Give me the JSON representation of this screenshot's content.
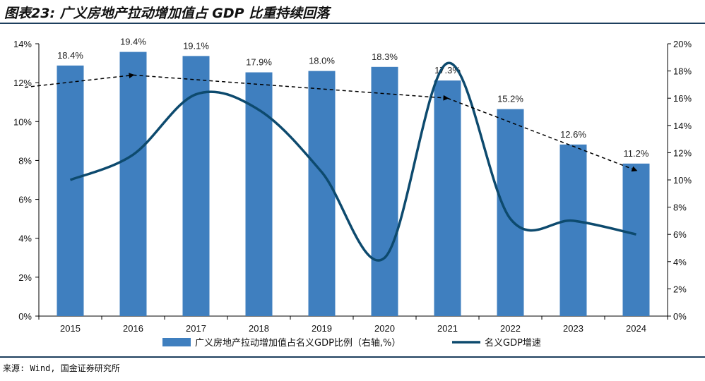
{
  "title": "图表23: 广义房地产拉动增加值占 GDP 比重持续回落",
  "source": "来源: Wind, 国金证券研究所",
  "chart_data": {
    "type": "bar+line",
    "categories": [
      "2015",
      "2016",
      "2017",
      "2018",
      "2019",
      "2020",
      "2021",
      "2022",
      "2023",
      "2024"
    ],
    "series": [
      {
        "name": "广义房地产拉动增加值占名义GDP比例（右轴,%）",
        "type": "bar",
        "axis": "right",
        "color": "#3f7fbf",
        "values": [
          18.4,
          19.4,
          19.1,
          17.9,
          18.0,
          18.3,
          17.3,
          15.2,
          12.6,
          11.2
        ],
        "labels": [
          "18.4%",
          "19.4%",
          "19.1%",
          "17.9%",
          "18.0%",
          "18.3%",
          "17.3%",
          "15.2%",
          "12.6%",
          "11.2%"
        ]
      },
      {
        "name": "名义GDP增速",
        "type": "line",
        "axis": "left",
        "color": "#0d4a6e",
        "values": [
          7.0,
          8.3,
          11.4,
          10.6,
          7.4,
          3.0,
          13.0,
          5.0,
          4.9,
          4.2
        ]
      }
    ],
    "trend_arrow": {
      "style": "dashed",
      "axis": "right",
      "points": [
        [
          "2015",
          16.8
        ],
        [
          "2016",
          17.7
        ],
        [
          "2021",
          16.0
        ],
        [
          "2024",
          10.7
        ]
      ]
    },
    "left_axis": {
      "ylim": [
        0,
        14
      ],
      "ticks": [
        "0%",
        "2%",
        "4%",
        "6%",
        "8%",
        "10%",
        "12%",
        "14%"
      ]
    },
    "right_axis": {
      "ylim": [
        0,
        20
      ],
      "ticks": [
        "0%",
        "2%",
        "4%",
        "6%",
        "8%",
        "10%",
        "12%",
        "14%",
        "16%",
        "18%",
        "20%"
      ]
    },
    "grid": false,
    "legend": "top-center"
  }
}
